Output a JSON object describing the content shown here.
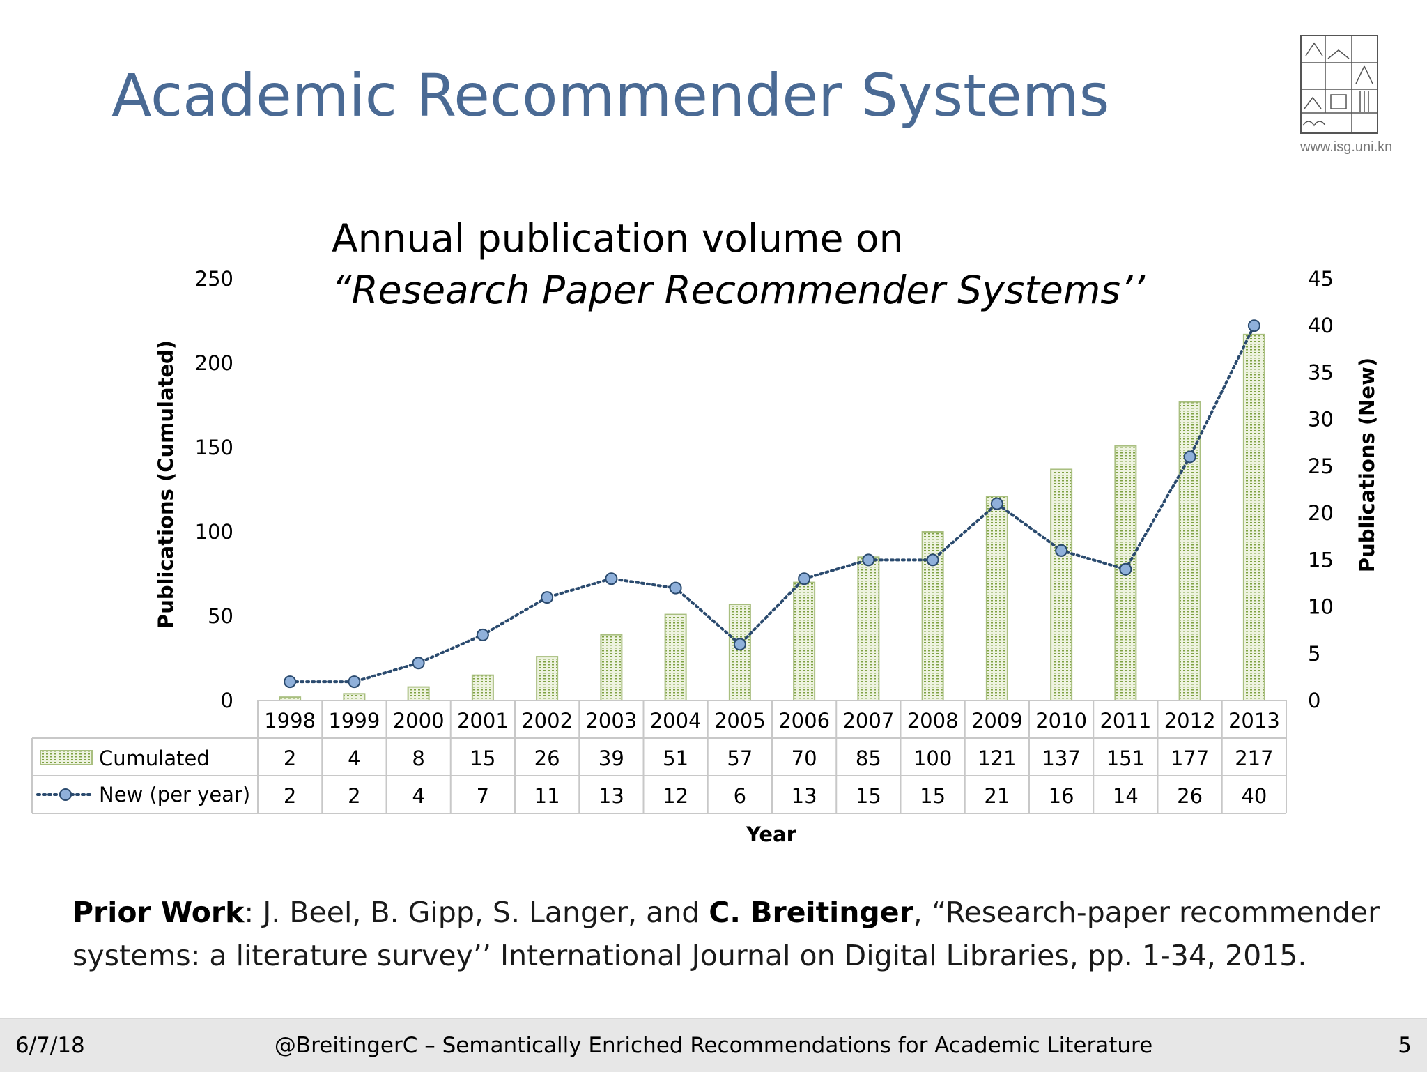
{
  "slide": {
    "title": "Academic Recommender Systems",
    "logo_url": "www.isg.uni.kn"
  },
  "chart_data": {
    "type": "bar",
    "title": "Annual publication volume on",
    "subtitle": "“Research Paper Recommender Systems’’",
    "xlabel": "Year",
    "ylabel": "Publications (Cumulated)",
    "y2label": "Publications (New)",
    "ylim": [
      0,
      250
    ],
    "y2lim": [
      0,
      45
    ],
    "yticks": [
      "250",
      "200",
      "150",
      "100",
      "50",
      "0"
    ],
    "y2ticks": [
      "45",
      "40",
      "35",
      "30",
      "25",
      "20",
      "15",
      "10",
      "5",
      "0"
    ],
    "categories": [
      "1998",
      "1999",
      "2000",
      "2001",
      "2002",
      "2003",
      "2004",
      "2005",
      "2006",
      "2007",
      "2008",
      "2009",
      "2010",
      "2011",
      "2012",
      "2013"
    ],
    "series": [
      {
        "name": "Cumulated",
        "type": "bar",
        "axis": "left",
        "values": [
          2,
          4,
          8,
          15,
          26,
          39,
          51,
          57,
          70,
          85,
          100,
          121,
          137,
          151,
          177,
          217
        ]
      },
      {
        "name": "New (per year)",
        "type": "line",
        "axis": "right",
        "values": [
          2,
          2,
          4,
          7,
          11,
          13,
          12,
          6,
          13,
          15,
          15,
          21,
          16,
          14,
          26,
          40
        ]
      }
    ],
    "data_table": true,
    "grid": false,
    "colors": {
      "bar_fill": "#eef3e0",
      "bar_pattern": "#7ea142",
      "bar_border": "#a9bf80",
      "line": "#2a4a6e",
      "marker": "#8fb0da"
    }
  },
  "citation": {
    "prior_label": "Prior Work",
    "authors_before": ": J. Beel, B. Gipp, S. Langer, and ",
    "highlight_author": "C. Breitinger",
    "rest": ", “Research-paper recommender systems: a literature survey’’ International Journal on Digital Libraries, pp. 1-34, 2015."
  },
  "footer": {
    "date": "6/7/18",
    "center": "@BreitingerC   –   Semantically Enriched Recommendations for Academic Literature",
    "page": "5"
  }
}
